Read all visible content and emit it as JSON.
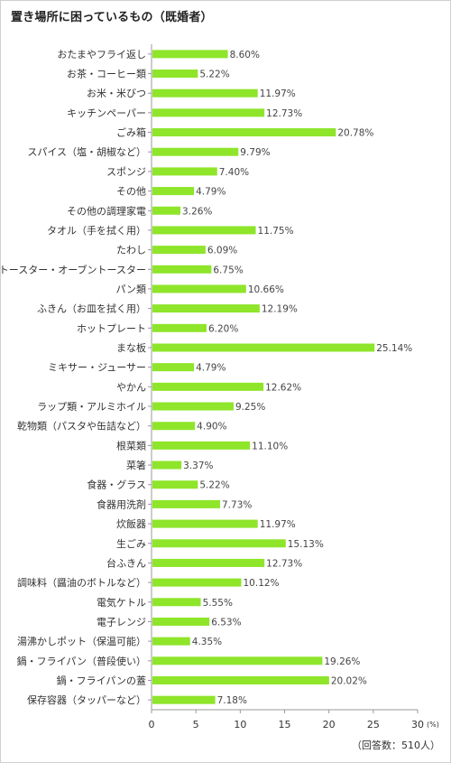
{
  "title": "置き場所に困っているもの（既婚者）",
  "note": "（回答数：510人）",
  "chart_data": {
    "type": "bar",
    "orientation": "horizontal",
    "unit_label": "(%)",
    "xlim": [
      0,
      30
    ],
    "xticks": [
      0,
      5,
      10,
      15,
      20,
      25,
      30
    ],
    "grid": false,
    "bar_color": "#8ee52a",
    "categories": [
      "おたまやフライ返し",
      "お茶・コーヒー類",
      "お米・米びつ",
      "キッチンペーパー",
      "ごみ箱",
      "スパイス（塩・胡椒など）",
      "スポンジ",
      "その他",
      "その他の調理家電",
      "タオル（手を拭く用）",
      "たわし",
      "トースター・オーブントースター",
      "パン類",
      "ふきん（お皿を拭く用）",
      "ホットプレート",
      "まな板",
      "ミキサー・ジューサー",
      "やかん",
      "ラップ類・アルミホイル",
      "乾物類（パスタや缶詰など）",
      "根菜類",
      "菜箸",
      "食器・グラス",
      "食器用洗剤",
      "炊飯器",
      "生ごみ",
      "台ふきん",
      "調味料（醤油のボトルなど）",
      "電気ケトル",
      "電子レンジ",
      "湯沸かしポット（保温可能）",
      "鍋・フライパン（普段使い）",
      "鍋・フライパンの蓋",
      "保存容器（タッパーなど）"
    ],
    "values": [
      8.6,
      5.22,
      11.97,
      12.73,
      20.78,
      9.79,
      7.4,
      4.79,
      3.26,
      11.75,
      6.09,
      6.75,
      10.66,
      12.19,
      6.2,
      25.14,
      4.79,
      12.62,
      9.25,
      4.9,
      11.1,
      3.37,
      5.22,
      7.73,
      11.97,
      15.13,
      12.73,
      10.12,
      5.55,
      6.53,
      4.35,
      19.26,
      20.02,
      7.18
    ],
    "value_labels": [
      "8.60%",
      "5.22%",
      "11.97%",
      "12.73%",
      "20.78%",
      "9.79%",
      "7.40%",
      "4.79%",
      "3.26%",
      "11.75%",
      "6.09%",
      "6.75%",
      "10.66%",
      "12.19%",
      "6.20%",
      "25.14%",
      "4.79%",
      "12.62%",
      "9.25%",
      "4.90%",
      "11.10%",
      "3.37%",
      "5.22%",
      "7.73%",
      "11.97%",
      "15.13%",
      "12.73%",
      "10.12%",
      "5.55%",
      "6.53%",
      "4.35%",
      "19.26%",
      "20.02%",
      "7.18%"
    ]
  }
}
